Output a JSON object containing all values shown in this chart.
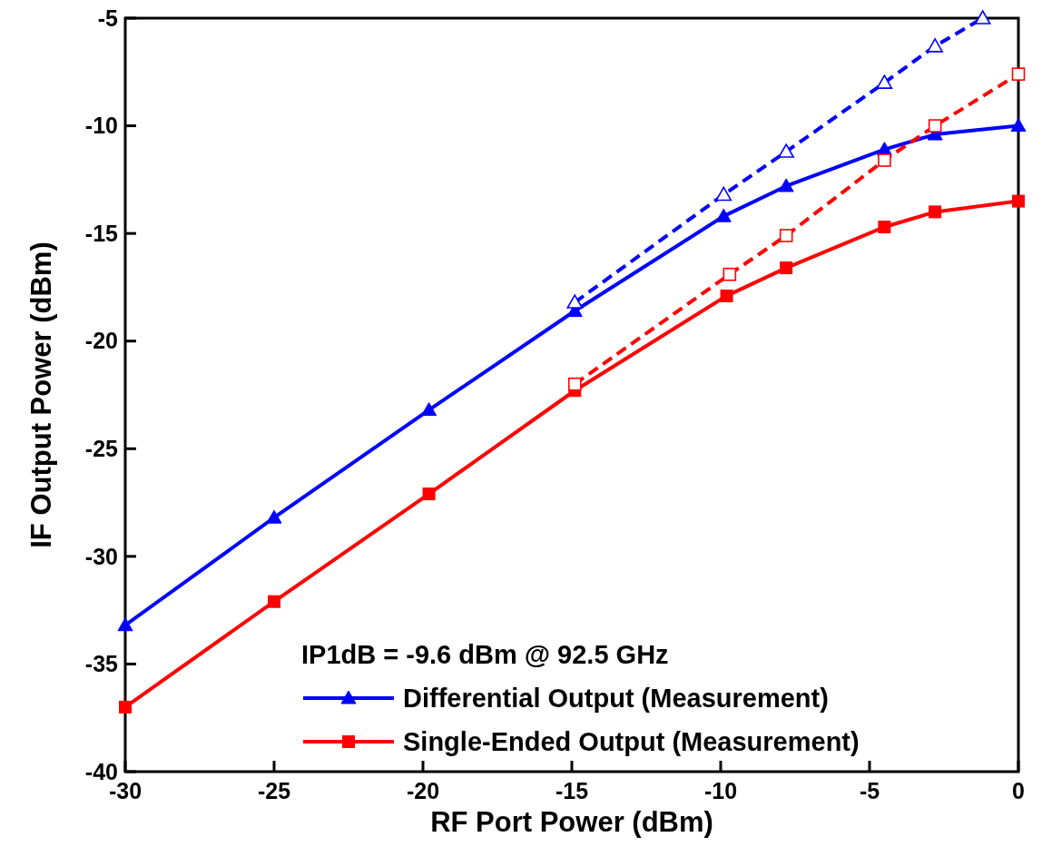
{
  "chart_data": {
    "type": "line",
    "xlabel": "RF Port Power (dBm)",
    "ylabel": "IF Output Power (dBm)",
    "xlim": [
      -30,
      0
    ],
    "xticks": [
      -30,
      -25,
      -20,
      -15,
      -10,
      -5,
      0
    ],
    "ylim": [
      -40,
      -5
    ],
    "yticks": [
      -40,
      -35,
      -30,
      -25,
      -20,
      -15,
      -10,
      -5
    ],
    "grid": false,
    "legend": "bottom right",
    "annotations": [
      "IP1dB = -9.6 dBm @ 92.5 GHz"
    ],
    "series": [
      {
        "name": "Differential Output (Measurement)",
        "color": "#0000ff",
        "marker": "triangle",
        "line_style": "solid",
        "x": [
          -30,
          -25,
          -19.8,
          -14.9,
          -9.9,
          -7.8,
          -4.5,
          -2.8,
          0
        ],
        "values": [
          -33.2,
          -28.2,
          -23.2,
          -18.6,
          -14.2,
          -12.8,
          -11.1,
          -10.4,
          -10.0
        ]
      },
      {
        "name": "Single-Ended Output (Measurement)",
        "color": "#ff0000",
        "marker": "square",
        "line_style": "solid",
        "x": [
          -30,
          -25,
          -19.8,
          -14.9,
          -9.8,
          -7.8,
          -4.5,
          -2.8,
          0
        ],
        "values": [
          -37.0,
          -32.1,
          -27.1,
          -22.3,
          -17.9,
          -16.6,
          -14.7,
          -14.0,
          -13.5
        ]
      },
      {
        "color": "#0000ff",
        "marker": "triangle",
        "line_style": "dashed",
        "x": [
          -14.9,
          -9.9,
          -7.8,
          -4.5,
          -2.8,
          -1.2
        ],
        "values": [
          -18.2,
          -13.2,
          -11.2,
          -8.0,
          -6.3,
          -5.0
        ]
      },
      {
        "color": "#ff0000",
        "marker": "square",
        "line_style": "dashed",
        "x": [
          -14.9,
          -9.7,
          -7.8,
          -4.5,
          -2.8,
          0
        ],
        "values": [
          -22.0,
          -16.9,
          -15.1,
          -11.6,
          -10.0,
          -7.6
        ]
      }
    ]
  }
}
